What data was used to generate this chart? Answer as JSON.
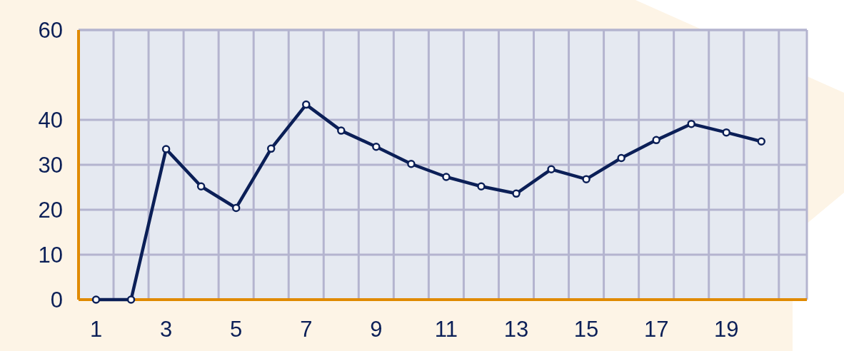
{
  "chart_data": {
    "type": "line",
    "x": [
      1,
      2,
      3,
      4,
      5,
      6,
      7,
      8,
      9,
      10,
      11,
      12,
      13,
      14,
      15,
      16,
      17,
      18,
      19,
      20
    ],
    "series": [
      {
        "color": "#0b1f57",
        "values": [
          0,
          0,
          33.5,
          25.2,
          20.4,
          33.6,
          43.4,
          37.6,
          34.0,
          30.2,
          27.3,
          25.2,
          23.6,
          29.0,
          26.8,
          31.5,
          35.5,
          39.1,
          37.2,
          35.2
        ]
      }
    ],
    "xlim": [
      0.5,
      21.3
    ],
    "xticks": [
      {
        "value": 0.5,
        "label": null
      },
      1,
      {
        "value": 1.5,
        "label": null
      },
      {
        "value": 2.5,
        "label": null
      },
      3,
      {
        "value": 3.5,
        "label": null
      },
      {
        "value": 4.5,
        "label": null
      },
      5,
      {
        "value": 5.5,
        "label": null
      },
      {
        "value": 6.5,
        "label": null
      },
      7,
      {
        "value": 7.5,
        "label": null
      },
      {
        "value": 8.5,
        "label": null
      },
      9,
      {
        "value": 9.5,
        "label": null
      },
      {
        "value": 10.5,
        "label": null
      },
      11,
      {
        "value": 11.5,
        "label": null
      },
      {
        "value": 12.5,
        "label": null
      },
      13,
      {
        "value": 13.5,
        "label": null
      },
      {
        "value": 14.5,
        "label": null
      },
      15,
      {
        "value": 15.5,
        "label": null
      },
      {
        "value": 16.5,
        "label": null
      },
      17,
      {
        "value": 17.5,
        "label": null
      },
      {
        "value": 18.5,
        "label": null
      },
      19,
      {
        "value": 19.5,
        "label": null
      },
      {
        "value": 20.5,
        "label": null
      }
    ],
    "ylim": [
      0,
      60
    ],
    "yticks": [
      0,
      10,
      20,
      30,
      40,
      60
    ],
    "grid": true,
    "marker": "circle",
    "line_style": "solid"
  }
}
